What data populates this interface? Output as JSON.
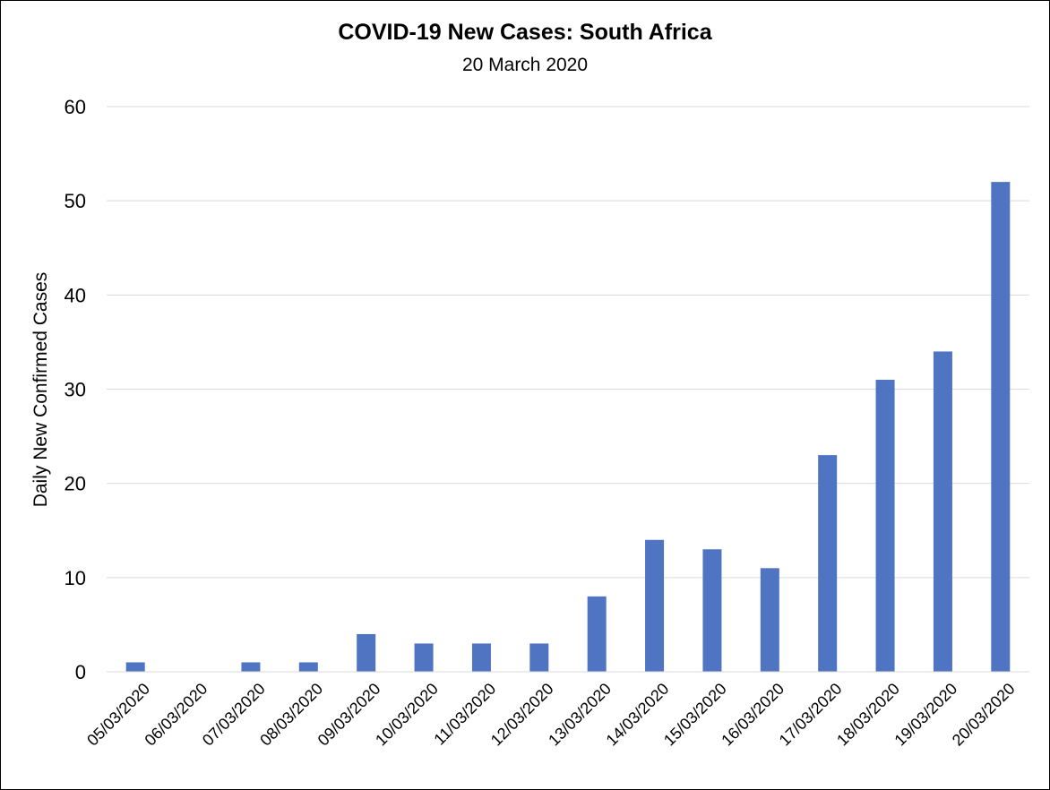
{
  "chart_data": {
    "type": "bar",
    "title": "COVID-19 New Cases: South Africa",
    "subtitle": "20 March 2020",
    "xlabel": "",
    "ylabel": "Daily New Confirmed Cases",
    "ylim": [
      0,
      60
    ],
    "yticks": [
      0,
      10,
      20,
      30,
      40,
      50,
      60
    ],
    "grid": true,
    "legend": "none",
    "bar_color": "#4f74c2",
    "categories": [
      "05/03/2020",
      "06/03/2020",
      "07/03/2020",
      "08/03/2020",
      "09/03/2020",
      "10/03/2020",
      "11/03/2020",
      "12/03/2020",
      "13/03/2020",
      "14/03/2020",
      "15/03/2020",
      "16/03/2020",
      "17/03/2020",
      "18/03/2020",
      "19/03/2020",
      "20/03/2020"
    ],
    "values": [
      1,
      0,
      1,
      1,
      4,
      3,
      3,
      3,
      8,
      14,
      13,
      11,
      23,
      31,
      34,
      52
    ]
  }
}
